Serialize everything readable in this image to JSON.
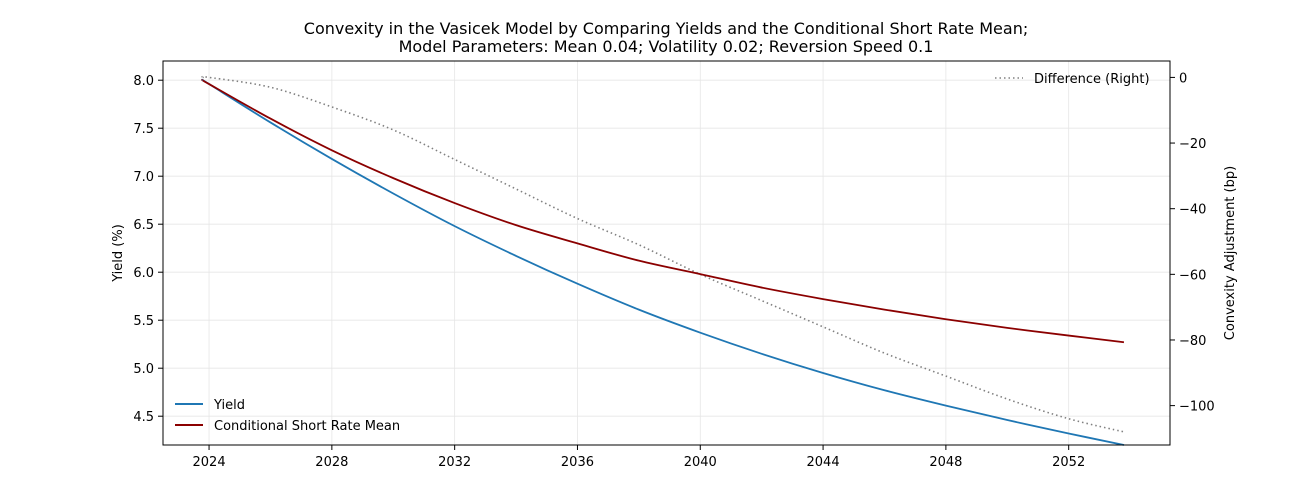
{
  "chart_data": {
    "type": "line",
    "title": "Convexity in the Vasicek Model by Comparing Yields and the Conditional Short Rate Mean;",
    "subtitle": "Model Parameters: Mean 0.04; Volatility 0.02; Reversion Speed 0.1",
    "xlabel": "",
    "ylabel": "Yield (%)",
    "ylabel_right": "Convexity Adjustment (bp)",
    "xlim": [
      2022.5,
      2055.3
    ],
    "ylim": [
      4.2,
      8.2
    ],
    "ylim_right": [
      -112,
      5
    ],
    "x_ticks": [
      2024,
      2028,
      2032,
      2036,
      2040,
      2044,
      2048,
      2052
    ],
    "x_tick_labels": [
      "2024",
      "2028",
      "2032",
      "2036",
      "2040",
      "2044",
      "2048",
      "2052"
    ],
    "y_ticks": [
      4.5,
      5.0,
      5.5,
      6.0,
      6.5,
      7.0,
      7.5,
      8.0
    ],
    "y_tick_labels": [
      "4.5",
      "5.0",
      "5.5",
      "6.0",
      "6.5",
      "7.0",
      "7.5",
      "8.0"
    ],
    "y_ticks_right": [
      0,
      -20,
      -40,
      -60,
      -80,
      -100
    ],
    "y_tick_labels_right": [
      "0",
      "−20",
      "−40",
      "−60",
      "−80",
      "−100"
    ],
    "grid": true,
    "legend_left_placement": "lower-left",
    "legend_right_placement": "upper-right",
    "x": [
      2023.8,
      2024,
      2026,
      2028,
      2030,
      2032,
      2034,
      2036,
      2038,
      2040,
      2042,
      2044,
      2046,
      2048,
      2050,
      2052,
      2053.8
    ],
    "series": [
      {
        "name": "Yield",
        "axis": "left",
        "color": "#1f77b4",
        "style": "solid",
        "values": [
          8.0,
          7.96,
          7.56,
          7.18,
          6.82,
          6.48,
          6.17,
          5.88,
          5.61,
          5.37,
          5.15,
          4.95,
          4.77,
          4.61,
          4.46,
          4.32,
          4.2
        ]
      },
      {
        "name": "Conditional Short Rate Mean",
        "axis": "left",
        "color": "#8b0000",
        "style": "solid",
        "values": [
          8.0,
          7.96,
          7.6,
          7.27,
          6.98,
          6.72,
          6.49,
          6.3,
          6.12,
          5.98,
          5.84,
          5.72,
          5.61,
          5.51,
          5.42,
          5.34,
          5.27
        ]
      },
      {
        "name": "Difference (Right)",
        "axis": "right",
        "color": "#808080",
        "style": "dotted",
        "values": [
          0,
          0,
          -3,
          -9,
          -16,
          -25,
          -34,
          -43,
          -51,
          -60,
          -68,
          -76,
          -84,
          -91,
          -98,
          -104,
          -108
        ]
      }
    ]
  }
}
